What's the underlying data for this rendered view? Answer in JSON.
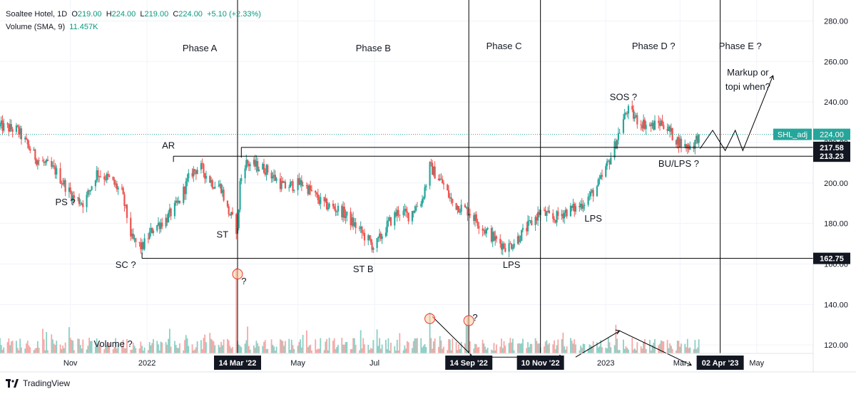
{
  "header": {
    "symbol": "Soaltee Hotel, 1D",
    "o_label": "O",
    "o_value": "219.00",
    "h_label": "H",
    "h_value": "224.00",
    "l_label": "L",
    "l_value": "219.00",
    "c_label": "C",
    "c_value": "224.00",
    "change": "+5.10 (+2.33%)",
    "volume_label": "Volume (SMA, 9)",
    "volume_value": "11.457K"
  },
  "footer": {
    "brand": "TradingView"
  },
  "colors": {
    "up": "#26a69a",
    "down": "#ef5350",
    "vol_up": "#8ccfc4",
    "vol_down": "#f4a9a6",
    "price_line": "#26a69a"
  },
  "chart_data": {
    "type": "candlestick",
    "y_axis": {
      "min": 100,
      "max": 290,
      "ticks": [
        120,
        140,
        160,
        180,
        200,
        220,
        240,
        260,
        280
      ],
      "tick_labels": [
        "120.00",
        "140.00",
        "160.00",
        "180.00",
        "200.00",
        "220.00",
        "240.00",
        "260.00",
        "280.00"
      ]
    },
    "x_axis": {
      "start": "2021-09-06",
      "end": "2023-06-15",
      "labels": [
        {
          "date": "2021-11-01",
          "text": "Nov"
        },
        {
          "date": "2022-01-01",
          "text": "2022"
        },
        {
          "date": "2022-05-01",
          "text": "May"
        },
        {
          "date": "2022-07-01",
          "text": "Jul"
        },
        {
          "date": "2023-01-01",
          "text": "2023"
        },
        {
          "date": "2023-03-01",
          "text": "Mar"
        },
        {
          "date": "2023-05-01",
          "text": "May"
        }
      ],
      "highlight_labels": [
        {
          "date": "2022-03-14",
          "text": "14 Mar '22"
        },
        {
          "date": "2022-09-14",
          "text": "14 Sep '22"
        },
        {
          "date": "2022-11-10",
          "text": "10 Nov '22"
        },
        {
          "date": "2023-04-02",
          "text": "02 Apr '23"
        }
      ]
    },
    "series_label": {
      "name": "SHL_adj",
      "value": "224.00"
    },
    "price_levels": [
      {
        "value": 217.58,
        "label": "217.58"
      },
      {
        "value": 213.23,
        "label": "213.23"
      },
      {
        "value": 162.75,
        "label": "162.75"
      }
    ],
    "last_price": 224.0,
    "anchors": [
      [
        "2021-09-06",
        228
      ],
      [
        "2021-09-20",
        226
      ],
      [
        "2021-10-05",
        212
      ],
      [
        "2021-10-20",
        206
      ],
      [
        "2021-11-03",
        193
      ],
      [
        "2021-11-12",
        190
      ],
      [
        "2021-11-22",
        205
      ],
      [
        "2021-12-02",
        202
      ],
      [
        "2021-12-12",
        195
      ],
      [
        "2021-12-20",
        172
      ],
      [
        "2021-12-28",
        168
      ],
      [
        "2022-01-06",
        178
      ],
      [
        "2022-01-16",
        182
      ],
      [
        "2022-01-26",
        190
      ],
      [
        "2022-02-05",
        205
      ],
      [
        "2022-02-12",
        208
      ],
      [
        "2022-02-22",
        200
      ],
      [
        "2022-03-01",
        198
      ],
      [
        "2022-03-05",
        188
      ],
      [
        "2022-03-10",
        182
      ],
      [
        "2022-03-14",
        176
      ],
      [
        "2022-03-16",
        200
      ],
      [
        "2022-03-20",
        210
      ],
      [
        "2022-04-05",
        207
      ],
      [
        "2022-04-20",
        198
      ],
      [
        "2022-05-05",
        200
      ],
      [
        "2022-05-20",
        190
      ],
      [
        "2022-06-05",
        186
      ],
      [
        "2022-06-20",
        176
      ],
      [
        "2022-07-01",
        168
      ],
      [
        "2022-07-12",
        180
      ],
      [
        "2022-07-20",
        186
      ],
      [
        "2022-07-28",
        184
      ],
      [
        "2022-08-08",
        192
      ],
      [
        "2022-08-14",
        208
      ],
      [
        "2022-08-24",
        200
      ],
      [
        "2022-09-01",
        190
      ],
      [
        "2022-09-14",
        186
      ],
      [
        "2022-09-25",
        178
      ],
      [
        "2022-10-05",
        172
      ],
      [
        "2022-10-15",
        168
      ],
      [
        "2022-10-25",
        174
      ],
      [
        "2022-11-05",
        182
      ],
      [
        "2022-11-10",
        186
      ],
      [
        "2022-11-20",
        182
      ],
      [
        "2022-11-30",
        186
      ],
      [
        "2022-12-10",
        188
      ],
      [
        "2022-12-20",
        194
      ],
      [
        "2022-12-27",
        200
      ],
      [
        "2023-01-03",
        210
      ],
      [
        "2023-01-08",
        218
      ],
      [
        "2023-01-13",
        228
      ],
      [
        "2023-01-18",
        236
      ],
      [
        "2023-01-28",
        230
      ],
      [
        "2023-02-07",
        228
      ],
      [
        "2023-02-15",
        230
      ],
      [
        "2023-02-25",
        222
      ],
      [
        "2023-03-05",
        218
      ],
      [
        "2023-03-12",
        219
      ],
      [
        "2023-03-16",
        224
      ]
    ],
    "volume_spikes": [
      {
        "date": "2022-03-14",
        "value": 158
      },
      {
        "date": "2022-08-14",
        "value": 136
      },
      {
        "date": "2022-09-14",
        "value": 134
      },
      {
        "date": "2023-01-10",
        "value": 130
      },
      {
        "date": "2022-01-20",
        "value": 128
      },
      {
        "date": "2022-02-20",
        "value": 126
      },
      {
        "date": "2022-04-25",
        "value": 123
      }
    ],
    "annotations": [
      {
        "text": "Phase A",
        "date": "2022-02-12",
        "y": 265
      },
      {
        "text": "Phase B",
        "date": "2022-06-30",
        "y": 265
      },
      {
        "text": "Phase C",
        "date": "2022-10-12",
        "y": 266
      },
      {
        "text": "Phase D ?",
        "date": "2023-02-08",
        "y": 266
      },
      {
        "text": "Phase E ?",
        "date": "2023-04-18",
        "y": 266
      },
      {
        "text": "Markup or",
        "date": "2023-04-24",
        "y": 253
      },
      {
        "text": "topi when?",
        "date": "2023-04-24",
        "y": 246
      },
      {
        "text": "AR",
        "date": "2022-01-18",
        "y": 217
      },
      {
        "text": "PS ?",
        "date": "2021-10-28",
        "y": 189
      },
      {
        "text": "SC ?",
        "date": "2021-12-15",
        "y": 158
      },
      {
        "text": "ST",
        "date": "2022-03-02",
        "y": 173
      },
      {
        "text": "ST B",
        "date": "2022-06-22",
        "y": 156
      },
      {
        "text": "LPS",
        "date": "2022-10-18",
        "y": 158
      },
      {
        "text": "LPS",
        "date": "2022-12-22",
        "y": 181
      },
      {
        "text": "SOS ?",
        "date": "2023-01-15",
        "y": 241
      },
      {
        "text": "BU/LPS ?",
        "date": "2023-02-28",
        "y": 208
      },
      {
        "text": "Volume ?",
        "date": "2021-12-05",
        "y": 119
      },
      {
        "text": "?",
        "date": "2022-03-19",
        "y": 150
      },
      {
        "text": "?",
        "date": "2022-09-19",
        "y": 132
      }
    ],
    "vertical_markers": [
      "2022-03-14",
      "2022-09-14",
      "2022-11-10",
      "2023-04-02"
    ]
  }
}
